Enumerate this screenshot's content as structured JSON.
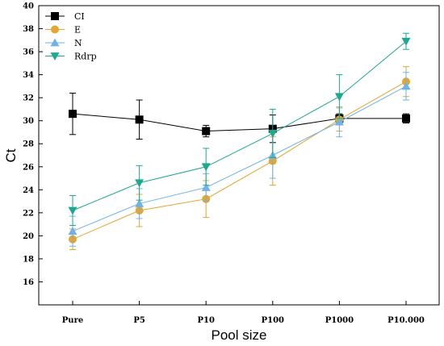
{
  "chart_data": {
    "type": "line",
    "title": "",
    "xlabel": "Pool size",
    "ylabel": "Ct",
    "categories": [
      "Pure",
      "P5",
      "P10",
      "P100",
      "P1000",
      "P10.000"
    ],
    "ylim": [
      14,
      40
    ],
    "yticks": [
      16,
      18,
      20,
      22,
      24,
      26,
      28,
      30,
      32,
      34,
      36,
      38,
      40
    ],
    "grid": false,
    "legend_position": "top-left",
    "series": [
      {
        "name": "CI",
        "color": "#000000",
        "marker": "square",
        "values": [
          30.6,
          30.1,
          29.1,
          29.3,
          30.2,
          30.2
        ],
        "errors": [
          1.8,
          1.7,
          0.5,
          1.2,
          0.4,
          0.4
        ]
      },
      {
        "name": "E",
        "color": "#e3a62f",
        "marker": "circle",
        "values": [
          19.7,
          22.2,
          23.2,
          26.5,
          30.1,
          33.4
        ],
        "errors": [
          0.9,
          1.4,
          1.6,
          2.1,
          1.0,
          1.3
        ]
      },
      {
        "name": "N",
        "color": "#6fb2e8",
        "marker": "triangle-up",
        "values": [
          20.4,
          22.8,
          24.2,
          27.0,
          29.9,
          33.0
        ],
        "errors": [
          1.3,
          1.3,
          1.2,
          2.0,
          1.3,
          1.2
        ]
      },
      {
        "name": "Rdrp",
        "color": "#1ba98f",
        "marker": "triangle-down",
        "values": [
          22.2,
          24.6,
          26.0,
          28.9,
          32.1,
          36.9
        ],
        "errors": [
          1.3,
          1.5,
          1.6,
          2.1,
          1.9,
          0.7
        ]
      }
    ]
  }
}
